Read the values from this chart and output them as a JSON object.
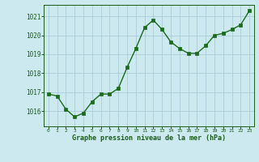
{
  "x": [
    0,
    1,
    2,
    3,
    4,
    5,
    6,
    7,
    8,
    9,
    10,
    11,
    12,
    13,
    14,
    15,
    16,
    17,
    18,
    19,
    20,
    21,
    22,
    23
  ],
  "y": [
    1016.9,
    1016.8,
    1016.1,
    1015.7,
    1015.9,
    1016.5,
    1016.9,
    1016.9,
    1017.2,
    1018.3,
    1019.3,
    1020.4,
    1020.8,
    1020.3,
    1019.65,
    1019.3,
    1019.05,
    1019.05,
    1019.45,
    1020.0,
    1020.1,
    1020.3,
    1020.55,
    1021.3
  ],
  "line_color": "#1a6b1a",
  "marker_color": "#1a6b1a",
  "bg_color": "#cce9f0",
  "grid_color": "#aaccd8",
  "xlabel": "Graphe pression niveau de la mer (hPa)",
  "xlabel_color": "#1a5c1a",
  "tick_color": "#1a5c1a",
  "ylim": [
    1015.2,
    1021.6
  ],
  "yticks": [
    1016,
    1017,
    1018,
    1019,
    1020,
    1021
  ],
  "xtick_labels": [
    "0",
    "1",
    "2",
    "3",
    "4",
    "5",
    "6",
    "7",
    "8",
    "9",
    "1011",
    "1213",
    "1415",
    "1617",
    "1819",
    "2021",
    "2223"
  ],
  "outer_bg": "#cce9f0"
}
